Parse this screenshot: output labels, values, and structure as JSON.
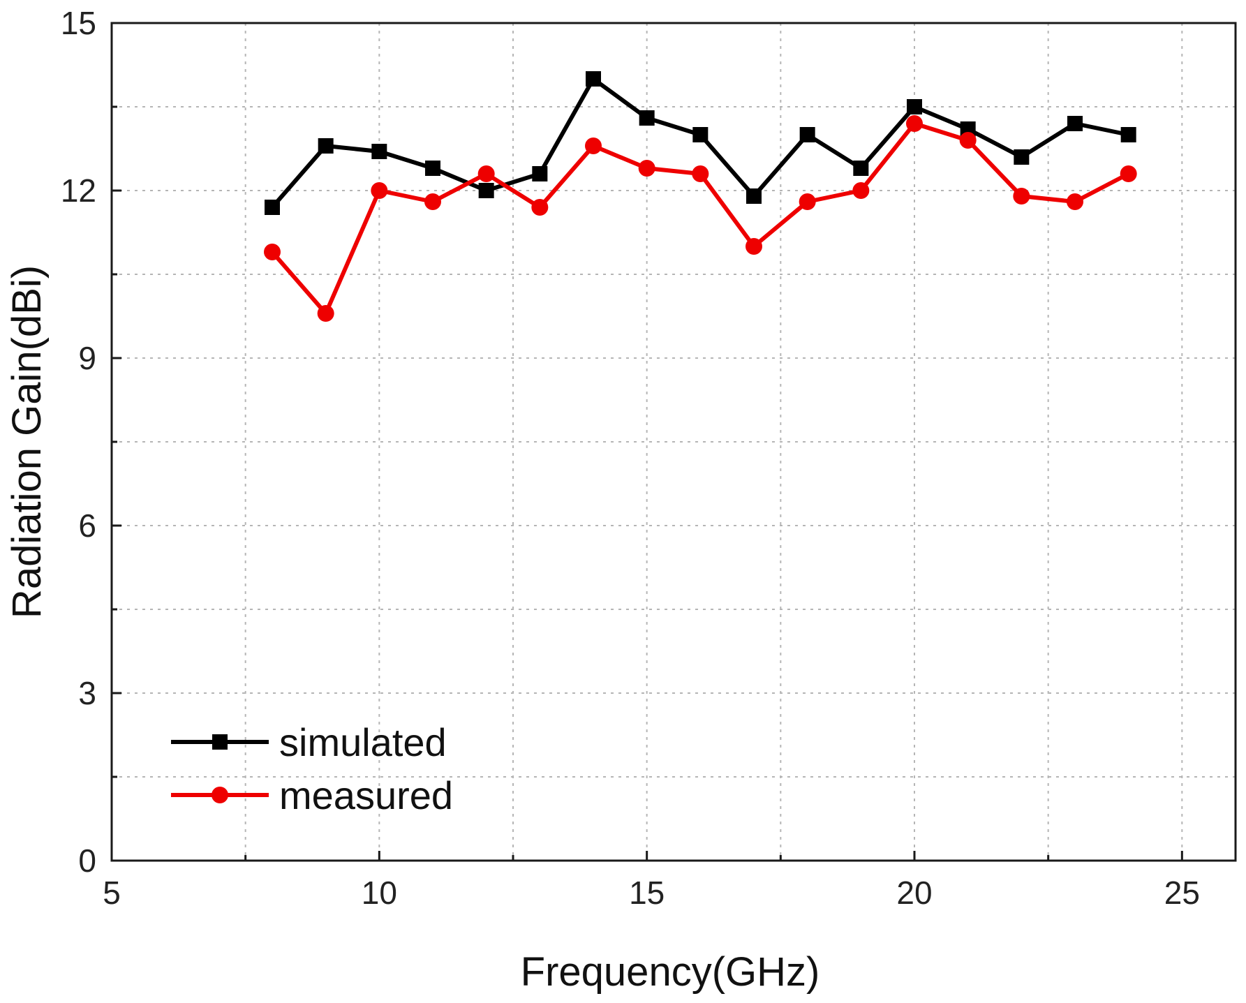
{
  "chart_data": {
    "type": "line",
    "title": "",
    "xlabel": "Frequency(GHz)",
    "ylabel": "Radiation Gain(dBi)",
    "xlim": [
      5,
      26
    ],
    "ylim": [
      0,
      15
    ],
    "xticks": [
      5,
      10,
      15,
      20,
      25
    ],
    "yticks": [
      0,
      3,
      6,
      9,
      12,
      15
    ],
    "grid": true,
    "legend_position": "bottom-left",
    "x": [
      8,
      9,
      10,
      11,
      12,
      13,
      14,
      15,
      16,
      17,
      18,
      19,
      20,
      21,
      22,
      23,
      24
    ],
    "series": [
      {
        "name": "simulated",
        "color": "#000000",
        "marker": "square",
        "values": [
          11.7,
          12.8,
          12.7,
          12.4,
          12.0,
          12.3,
          14.0,
          13.3,
          13.0,
          11.9,
          13.0,
          12.4,
          13.5,
          13.1,
          12.6,
          13.2,
          13.0
        ]
      },
      {
        "name": "measured",
        "color": "#ee0000",
        "marker": "circle",
        "values": [
          10.9,
          9.8,
          12.0,
          11.8,
          12.3,
          11.7,
          12.8,
          12.4,
          12.3,
          11.0,
          11.8,
          12.0,
          13.2,
          12.9,
          11.9,
          11.8,
          12.3
        ]
      }
    ]
  }
}
